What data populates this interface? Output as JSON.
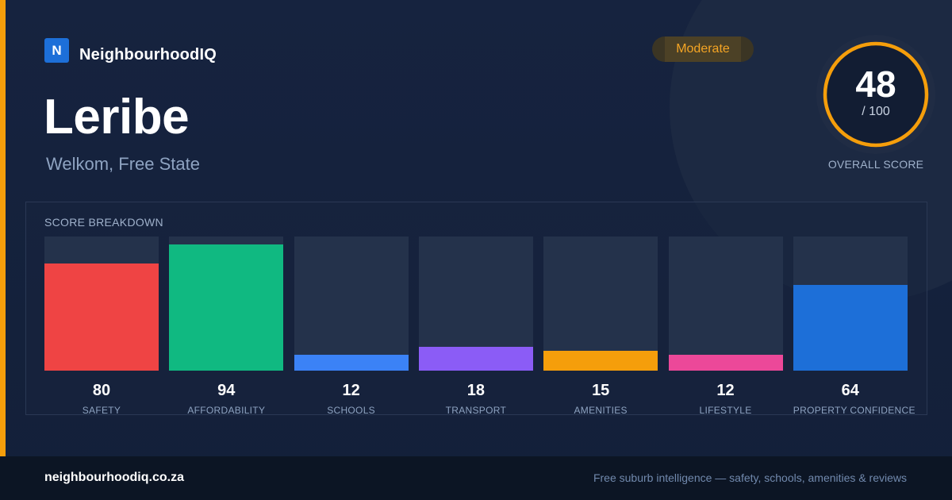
{
  "brand": {
    "logo_letter": "N",
    "name": "NeighbourhoodIQ"
  },
  "location": {
    "suburb": "Leribe",
    "region": "Welkom, Free State"
  },
  "rating": {
    "label": "Moderate"
  },
  "overall": {
    "score": "48",
    "max": "/ 100",
    "caption": "OVERALL SCORE",
    "value": 48,
    "out_of": 100
  },
  "breakdown": {
    "title": "SCORE BREAKDOWN"
  },
  "chart_data": {
    "type": "bar",
    "categories": [
      "SAFETY",
      "AFFORDABILITY",
      "SCHOOLS",
      "TRANSPORT",
      "AMENITIES",
      "LIFESTYLE",
      "PROPERTY CONFIDENCE"
    ],
    "values": [
      80,
      94,
      12,
      18,
      15,
      12,
      64
    ],
    "ylim": [
      0,
      100
    ],
    "colors": [
      "#ef4444",
      "#10b981",
      "#3b82f6",
      "#8b5cf6",
      "#f59e0b",
      "#ec4899",
      "#1d6fd8"
    ]
  },
  "footer": {
    "url": "neighbourhoodiq.co.za",
    "tagline": "Free suburb intelligence — safety, schools, amenities & reviews"
  },
  "colors": {
    "accent": "#f59e0b",
    "brand": "#1d6fd8",
    "badge_text": "#f5a524",
    "ring": "#f59e0b"
  }
}
